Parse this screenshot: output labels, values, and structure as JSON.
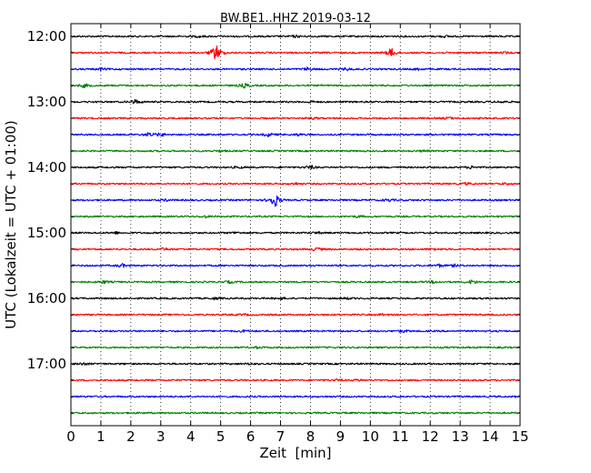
{
  "chart_data": {
    "type": "line",
    "title": "BW.BE1..HHZ 2019-03-12",
    "xlabel": "Zeit  [min]",
    "ylabel": "UTC (Lokalzeit = UTC + 01:00)",
    "xlim": [
      0,
      15
    ],
    "x_ticks": [
      "0",
      "1",
      "2",
      "3",
      "4",
      "5",
      "6",
      "7",
      "8",
      "9",
      "10",
      "11",
      "12",
      "13",
      "14",
      "15"
    ],
    "y_tick_labels": [
      "12:00",
      "13:00",
      "14:00",
      "15:00",
      "16:00",
      "17:00"
    ],
    "grid": "vertical dotted",
    "colors": [
      "#000000",
      "#ff0000",
      "#0000ff",
      "#008000"
    ],
    "traces": [
      {
        "start": "12:00",
        "events": [
          {
            "t": 4.3,
            "amp": 1
          },
          {
            "t": 7.5,
            "amp": 1
          },
          {
            "t": 12.5,
            "amp": 0.8
          }
        ]
      },
      {
        "start": "12:15",
        "events": [
          {
            "t": 4.85,
            "amp": 10
          },
          {
            "t": 10.7,
            "amp": 5
          },
          {
            "t": 14.5,
            "amp": 0.8
          }
        ]
      },
      {
        "start": "12:30",
        "events": [
          {
            "t": 1.0,
            "amp": 1
          },
          {
            "t": 7.9,
            "amp": 1.5
          },
          {
            "t": 9.2,
            "amp": 1.5
          },
          {
            "t": 11.6,
            "amp": 1
          }
        ]
      },
      {
        "start": "12:45",
        "events": [
          {
            "t": 0.45,
            "amp": 2
          },
          {
            "t": 5.8,
            "amp": 2.5
          }
        ]
      },
      {
        "start": "13:00",
        "events": [
          {
            "t": 2.15,
            "amp": 2.5
          },
          {
            "t": 8.0,
            "amp": 1
          },
          {
            "t": 14.4,
            "amp": 1
          }
        ]
      },
      {
        "start": "13:15",
        "events": [
          {
            "t": 8.1,
            "amp": 1
          },
          {
            "t": 12.6,
            "amp": 1.2
          }
        ]
      },
      {
        "start": "13:30",
        "events": [
          {
            "t": 2.6,
            "amp": 2
          },
          {
            "t": 3.0,
            "amp": 2
          },
          {
            "t": 6.6,
            "amp": 2
          },
          {
            "t": 7.6,
            "amp": 1.2
          }
        ]
      },
      {
        "start": "13:45",
        "events": [
          {
            "t": 5.0,
            "amp": 0.8
          },
          {
            "t": 11.8,
            "amp": 0.8
          }
        ]
      },
      {
        "start": "14:00",
        "events": [
          {
            "t": 8.0,
            "amp": 2
          },
          {
            "t": 13.4,
            "amp": 1.5
          },
          {
            "t": 5.6,
            "amp": 1
          }
        ]
      },
      {
        "start": "14:15",
        "events": [
          {
            "t": 7.5,
            "amp": 1
          },
          {
            "t": 13.2,
            "amp": 1
          },
          {
            "t": 14.5,
            "amp": 0.8
          }
        ]
      },
      {
        "start": "14:30",
        "events": [
          {
            "t": 3.2,
            "amp": 1
          },
          {
            "t": 6.8,
            "amp": 9
          },
          {
            "t": 10.6,
            "amp": 1.5
          }
        ]
      },
      {
        "start": "14:45",
        "events": [
          {
            "t": 4.5,
            "amp": 1
          },
          {
            "t": 9.6,
            "amp": 1
          }
        ]
      },
      {
        "start": "15:00",
        "events": [
          {
            "t": 1.5,
            "amp": 1
          },
          {
            "t": 5.5,
            "amp": 1
          },
          {
            "t": 8.2,
            "amp": 1
          }
        ]
      },
      {
        "start": "15:15",
        "events": [
          {
            "t": 3.1,
            "amp": 1.2
          },
          {
            "t": 8.2,
            "amp": 2
          },
          {
            "t": 12.1,
            "amp": 1
          }
        ]
      },
      {
        "start": "15:30",
        "events": [
          {
            "t": 1.7,
            "amp": 2
          },
          {
            "t": 12.3,
            "amp": 1.5
          },
          {
            "t": 12.8,
            "amp": 1.2
          }
        ]
      },
      {
        "start": "15:45",
        "events": [
          {
            "t": 1.1,
            "amp": 1.5
          },
          {
            "t": 5.3,
            "amp": 1.2
          },
          {
            "t": 12.1,
            "amp": 1.2
          },
          {
            "t": 13.4,
            "amp": 2.5
          }
        ]
      },
      {
        "start": "16:00",
        "events": [
          {
            "t": 4.8,
            "amp": 1
          },
          {
            "t": 7.0,
            "amp": 1
          },
          {
            "t": 9.2,
            "amp": 0.8
          }
        ]
      },
      {
        "start": "16:15",
        "events": [
          {
            "t": 5.8,
            "amp": 0.8
          },
          {
            "t": 10.4,
            "amp": 0.8
          }
        ]
      },
      {
        "start": "16:30",
        "events": [
          {
            "t": 5.8,
            "amp": 1
          },
          {
            "t": 11.1,
            "amp": 1.3
          }
        ]
      },
      {
        "start": "16:45",
        "events": [
          {
            "t": 6.2,
            "amp": 0.8
          }
        ]
      },
      {
        "start": "17:00",
        "events": [
          {
            "t": 0.4,
            "amp": 1.3
          },
          {
            "t": 6.0,
            "amp": 0.8
          }
        ]
      },
      {
        "start": "17:15",
        "events": [
          {
            "t": 8.9,
            "amp": 1
          },
          {
            "t": 9.6,
            "amp": 1
          }
        ]
      },
      {
        "start": "17:30",
        "events": []
      },
      {
        "start": "17:45",
        "events": []
      }
    ]
  }
}
